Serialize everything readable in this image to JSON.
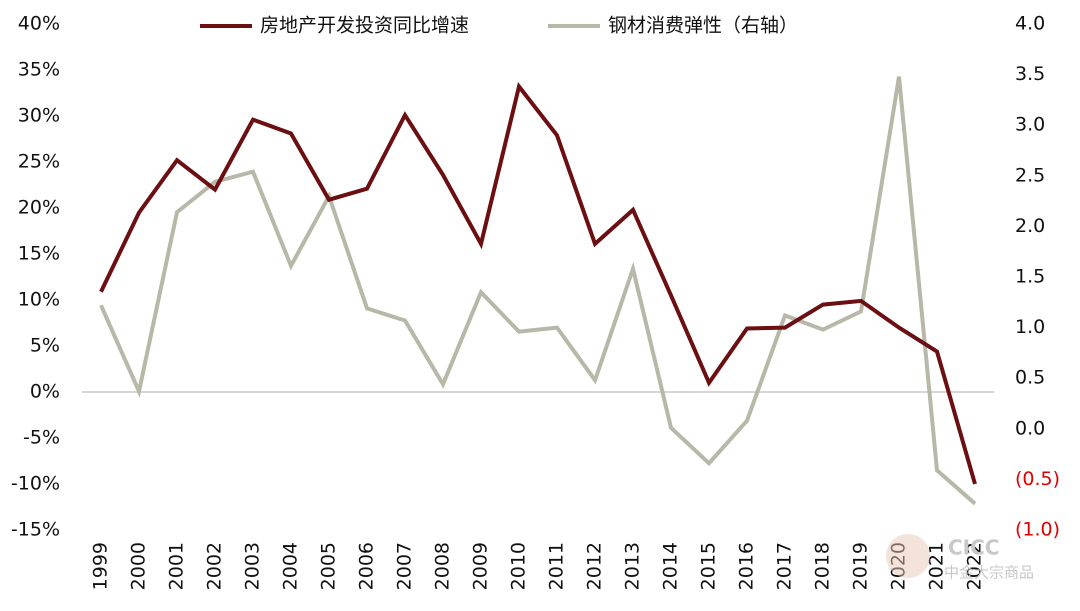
{
  "chart_data": {
    "type": "line",
    "categories": [
      "1999",
      "2000",
      "2001",
      "2002",
      "2003",
      "2004",
      "2005",
      "2006",
      "2007",
      "2008",
      "2009",
      "2010",
      "2011",
      "2012",
      "2013",
      "2014",
      "2015",
      "2016",
      "2017",
      "2018",
      "2019",
      "2020",
      "2021",
      "2022"
    ],
    "series": [
      {
        "name": "房地产开发投资同比增速",
        "color": "#6b0f12",
        "axis": "y",
        "values": [
          10.9,
          19.5,
          25.2,
          22.0,
          29.6,
          28.1,
          20.9,
          22.1,
          30.1,
          23.6,
          16.1,
          33.2,
          27.9,
          16.1,
          19.8,
          10.5,
          1.0,
          6.9,
          7.0,
          9.5,
          9.9,
          7.0,
          4.4,
          -10.0
        ]
      },
      {
        "name": "钢材消费弹性（右轴）",
        "color": "#b8b8a8",
        "axis": "y2",
        "values": [
          1.22,
          0.37,
          2.14,
          2.44,
          2.54,
          1.61,
          2.3,
          1.19,
          1.07,
          0.44,
          1.35,
          0.96,
          1.0,
          0.48,
          1.58,
          0.01,
          -0.34,
          0.08,
          1.12,
          0.98,
          1.16,
          3.48,
          -0.41,
          -0.74
        ]
      }
    ],
    "ylim": [
      -15,
      40
    ],
    "yticks": [
      {
        "value": -15,
        "label": "-15%"
      },
      {
        "value": -10,
        "label": "-10%"
      },
      {
        "value": -5,
        "label": "-5%"
      },
      {
        "value": 0,
        "label": "0%"
      },
      {
        "value": 5,
        "label": "5%"
      },
      {
        "value": 10,
        "label": "10%"
      },
      {
        "value": 15,
        "label": "15%"
      },
      {
        "value": 20,
        "label": "20%"
      },
      {
        "value": 25,
        "label": "25%"
      },
      {
        "value": 30,
        "label": "30%"
      },
      {
        "value": 35,
        "label": "35%"
      },
      {
        "value": 40,
        "label": "40%"
      }
    ],
    "y2lim": [
      -1,
      4
    ],
    "y2ticks": [
      {
        "value": -1,
        "label": "(1.0)"
      },
      {
        "value": -0.5,
        "label": "(0.5)"
      },
      {
        "value": 0,
        "label": "0.0"
      },
      {
        "value": 0.5,
        "label": "0.5"
      },
      {
        "value": 1,
        "label": "1.0"
      },
      {
        "value": 1.5,
        "label": "1.5"
      },
      {
        "value": 2,
        "label": "2.0"
      },
      {
        "value": 2.5,
        "label": "2.5"
      },
      {
        "value": 3,
        "label": "3.0"
      },
      {
        "value": 3.5,
        "label": "3.5"
      },
      {
        "value": 4,
        "label": "4.0"
      }
    ],
    "negative_tick_color": "#e00000",
    "legend": "top",
    "watermark": "CICC",
    "watermark_sub": "中金大宗商品"
  }
}
